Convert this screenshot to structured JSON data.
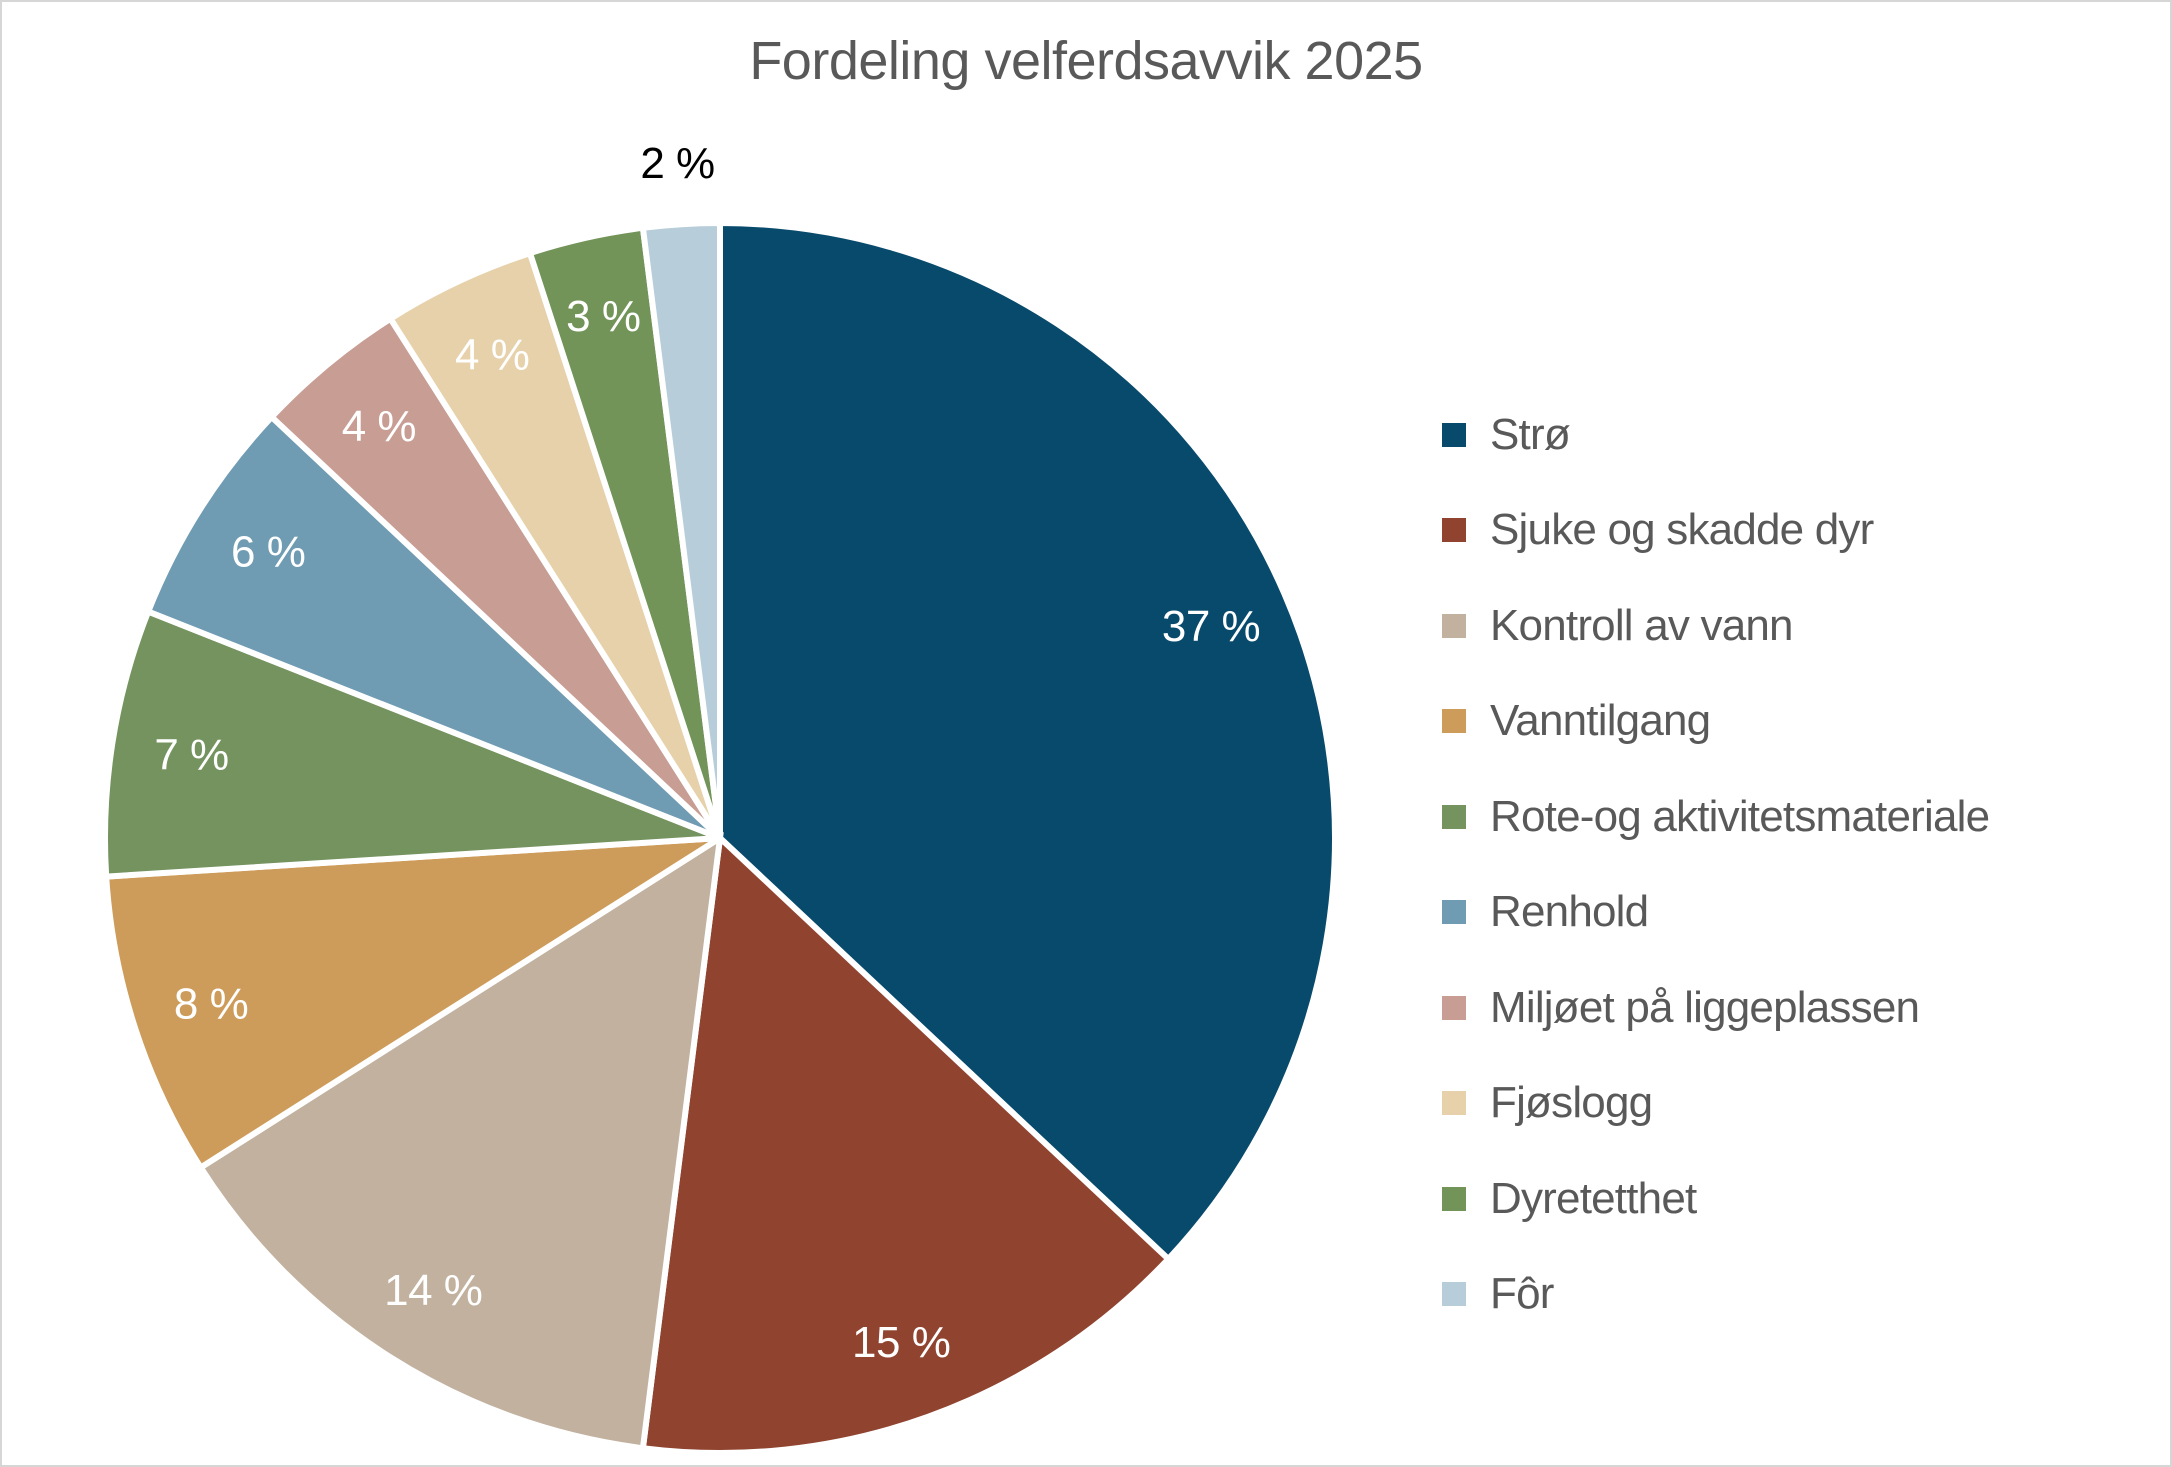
{
  "title": "Fordeling velferdsavvik 2025",
  "title_color": "#595959",
  "chart_data": {
    "type": "pie",
    "title": "Fordeling velferdsavvik 2025",
    "categories": [
      "Strø",
      "Sjuke og skadde dyr",
      "Kontroll av vann",
      "Vanntilgang",
      "Rote-og aktivitetsmateriale",
      "Renhold",
      "Miljøet på liggeplassen",
      "Fjøslogg",
      "Dyretetthet",
      "Fôr"
    ],
    "values": [
      37,
      15,
      14,
      8,
      7,
      6,
      4,
      4,
      3,
      2
    ],
    "data_labels": [
      "37 %",
      "15 %",
      "14 %",
      "8 %",
      "7 %",
      "6 %",
      "4 %",
      "4 %",
      "3 %",
      "2 %"
    ],
    "colors": [
      "#084a6c",
      "#90432f",
      "#c1b19e",
      "#cd9c5b",
      "#74935f",
      "#6f9bb3",
      "#c79d94",
      "#e6d1aa",
      "#729459",
      "#b7cdda"
    ],
    "start_angle_deg": 0,
    "direction": "clockwise",
    "slice_separator_color": "#ffffff",
    "label_color_inside": "#ffffff",
    "label_color_outside": "#000000",
    "legend_position": "right",
    "legend_text_color": "#595959"
  }
}
